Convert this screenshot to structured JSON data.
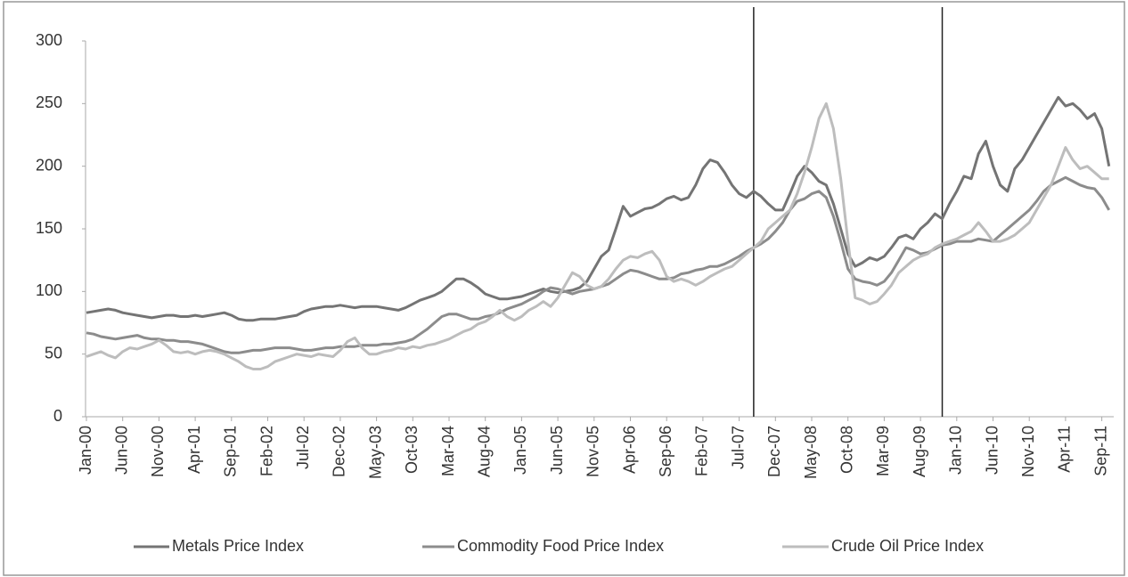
{
  "chart_data": {
    "type": "line",
    "categories": [
      "Jan-00",
      null,
      null,
      null,
      null,
      "Jun-00",
      null,
      null,
      null,
      null,
      "Nov-00",
      null,
      null,
      null,
      null,
      "Apr-01",
      null,
      null,
      null,
      null,
      "Sep-01",
      null,
      null,
      null,
      null,
      "Feb-02",
      null,
      null,
      null,
      null,
      "Jul-02",
      null,
      null,
      null,
      null,
      "Dec-02",
      null,
      null,
      null,
      null,
      "May-03",
      null,
      null,
      null,
      null,
      "Oct-03",
      null,
      null,
      null,
      null,
      "Mar-04",
      null,
      null,
      null,
      null,
      "Aug-04",
      null,
      null,
      null,
      null,
      "Jan-05",
      null,
      null,
      null,
      null,
      "Jun-05",
      null,
      null,
      null,
      null,
      "Nov-05",
      null,
      null,
      null,
      null,
      "Apr-06",
      null,
      null,
      null,
      null,
      "Sep-06",
      null,
      null,
      null,
      null,
      "Feb-07",
      null,
      null,
      null,
      null,
      "Jul-07",
      null,
      null,
      null,
      null,
      "Dec-07",
      null,
      null,
      null,
      null,
      "May-08",
      null,
      null,
      null,
      null,
      "Oct-08",
      null,
      null,
      null,
      null,
      "Mar-09",
      null,
      null,
      null,
      null,
      "Aug-09",
      null,
      null,
      null,
      null,
      "Jan-10",
      null,
      null,
      null,
      null,
      "Jun-10",
      null,
      null,
      null,
      null,
      "Nov-10",
      null,
      null,
      null,
      null,
      "Apr-11",
      null,
      null,
      null,
      null,
      "Sep-11",
      null
    ],
    "series": [
      {
        "name": "Metals Price Index",
        "color": "#747474",
        "values": [
          83,
          84,
          85,
          86,
          85,
          83,
          82,
          81,
          80,
          79,
          80,
          81,
          81,
          80,
          80,
          81,
          80,
          81,
          82,
          83,
          81,
          78,
          77,
          77,
          78,
          78,
          78,
          79,
          80,
          81,
          84,
          86,
          87,
          88,
          88,
          89,
          88,
          87,
          88,
          88,
          88,
          87,
          86,
          85,
          87,
          90,
          93,
          95,
          97,
          100,
          105,
          110,
          110,
          107,
          103,
          98,
          96,
          94,
          94,
          95,
          96,
          98,
          100,
          102,
          100,
          99,
          100,
          101,
          103,
          108,
          118,
          128,
          133,
          150,
          168,
          160,
          163,
          166,
          167,
          170,
          174,
          176,
          173,
          175,
          185,
          198,
          205,
          203,
          195,
          185,
          178,
          175,
          180,
          176,
          170,
          165,
          165,
          178,
          192,
          200,
          195,
          188,
          185,
          170,
          150,
          130,
          120,
          123,
          127,
          125,
          128,
          135,
          143,
          145,
          142,
          150,
          155,
          162,
          158,
          170,
          180,
          192,
          190,
          210,
          220,
          200,
          185,
          180,
          198,
          205,
          215,
          225,
          235,
          245,
          255,
          248,
          250,
          245,
          238,
          242,
          230,
          200
        ]
      },
      {
        "name": "Commodity Food Price Index",
        "color": "#8c8c8c",
        "values": [
          67,
          66,
          64,
          63,
          62,
          63,
          64,
          65,
          63,
          62,
          62,
          61,
          61,
          60,
          60,
          59,
          58,
          56,
          54,
          52,
          51,
          51,
          52,
          53,
          53,
          54,
          55,
          55,
          55,
          54,
          53,
          53,
          54,
          55,
          55,
          56,
          56,
          56,
          57,
          57,
          57,
          58,
          58,
          59,
          60,
          62,
          66,
          70,
          75,
          80,
          82,
          82,
          80,
          78,
          78,
          80,
          81,
          83,
          86,
          88,
          90,
          93,
          96,
          100,
          103,
          102,
          100,
          98,
          100,
          101,
          102,
          104,
          106,
          110,
          114,
          117,
          116,
          114,
          112,
          110,
          110,
          111,
          114,
          115,
          117,
          118,
          120,
          120,
          122,
          125,
          128,
          132,
          135,
          138,
          142,
          148,
          155,
          165,
          172,
          174,
          178,
          180,
          175,
          160,
          140,
          118,
          110,
          108,
          107,
          105,
          108,
          115,
          125,
          135,
          133,
          130,
          131,
          134,
          137,
          138,
          140,
          140,
          140,
          142,
          141,
          140,
          145,
          150,
          155,
          160,
          165,
          172,
          180,
          185,
          188,
          191,
          188,
          185,
          183,
          182,
          175,
          165
        ]
      },
      {
        "name": "Crude Oil Price Index",
        "color": "#bdbdbd",
        "values": [
          48,
          50,
          52,
          49,
          47,
          52,
          55,
          54,
          56,
          58,
          61,
          57,
          52,
          51,
          52,
          50,
          52,
          53,
          52,
          50,
          47,
          44,
          40,
          38,
          38,
          40,
          44,
          46,
          48,
          50,
          49,
          48,
          50,
          49,
          48,
          53,
          60,
          63,
          55,
          50,
          50,
          52,
          53,
          55,
          54,
          56,
          55,
          57,
          58,
          60,
          62,
          65,
          68,
          70,
          74,
          76,
          80,
          85,
          80,
          77,
          80,
          85,
          88,
          92,
          88,
          95,
          105,
          115,
          112,
          105,
          102,
          104,
          110,
          118,
          125,
          128,
          127,
          130,
          132,
          125,
          112,
          108,
          110,
          108,
          105,
          108,
          112,
          115,
          118,
          120,
          125,
          130,
          135,
          140,
          150,
          155,
          160,
          165,
          178,
          195,
          215,
          238,
          250,
          230,
          190,
          140,
          95,
          93,
          90,
          92,
          98,
          105,
          115,
          120,
          125,
          128,
          130,
          135,
          138,
          140,
          142,
          145,
          148,
          155,
          148,
          140,
          140,
          142,
          145,
          150,
          155,
          165,
          175,
          185,
          200,
          215,
          205,
          198,
          200,
          195,
          190,
          190
        ]
      }
    ],
    "vlines": [
      92,
      118
    ],
    "ylim": [
      0,
      300
    ],
    "yticks": [
      0,
      50,
      100,
      150,
      200,
      250,
      300
    ],
    "grid": false
  }
}
